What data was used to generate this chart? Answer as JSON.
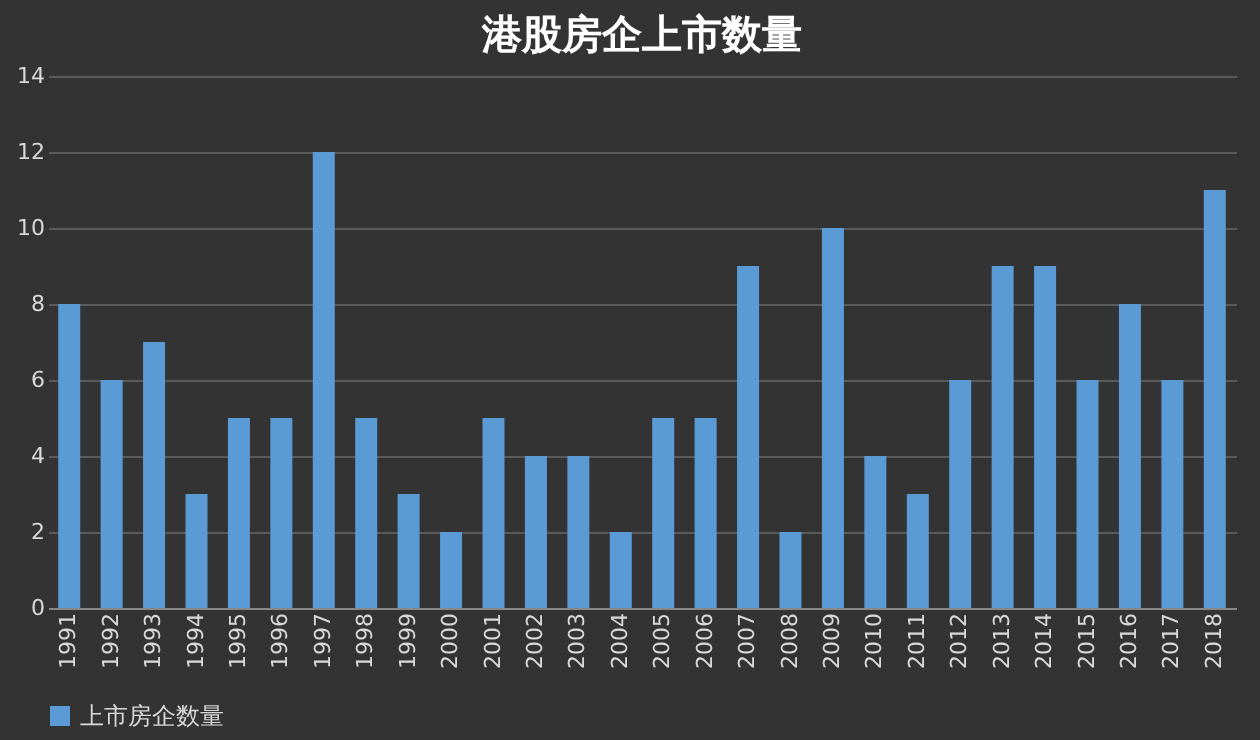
{
  "chart_data": {
    "type": "bar",
    "title": "港股房企上市数量",
    "categories": [
      "1991",
      "1992",
      "1993",
      "1994",
      "1995",
      "1996",
      "1997",
      "1998",
      "1999",
      "2000",
      "2001",
      "2002",
      "2003",
      "2004",
      "2005",
      "2006",
      "2007",
      "2008",
      "2009",
      "2010",
      "2011",
      "2012",
      "2013",
      "2014",
      "2015",
      "2016",
      "2017",
      "2018"
    ],
    "series": [
      {
        "name": "上市房企数量",
        "color": "#5b9bd5",
        "values": [
          8,
          6,
          7,
          3,
          5,
          5,
          12,
          5,
          3,
          2,
          5,
          4,
          4,
          2,
          5,
          5,
          9,
          2,
          10,
          4,
          3,
          6,
          9,
          9,
          6,
          8,
          6,
          11
        ]
      }
    ],
    "ylim": [
      0,
      14
    ],
    "yticks": [
      0,
      2,
      4,
      6,
      8,
      10,
      12,
      14
    ],
    "grid": "y",
    "legend": "bottom"
  }
}
